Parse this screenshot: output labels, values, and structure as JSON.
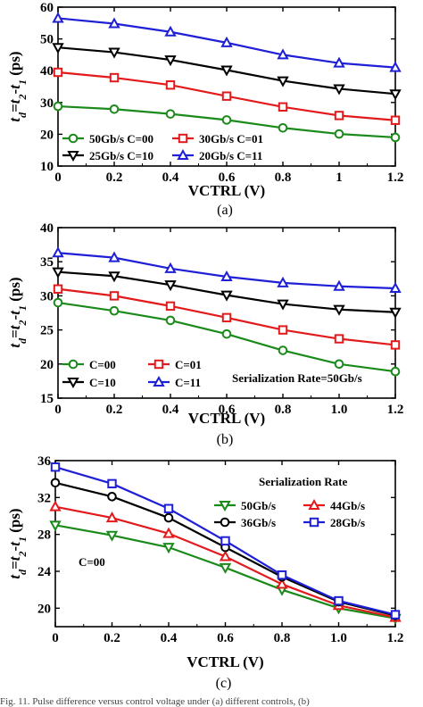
{
  "caption_fragment": "Fig. 11.  Pulse difference versus control voltage under (a) different controls, (b)",
  "colors": {
    "green": "#1a8a1a",
    "red": "#e31a1c",
    "black": "#000000",
    "blue": "#1f1fd6"
  },
  "chart_data": [
    {
      "type": "line",
      "panel": "(a)",
      "xlabel": "VCTRL (V)",
      "ylabel": "td=t2-t1 (ps)",
      "xlim": [
        0,
        1.2
      ],
      "ylim": [
        10,
        60
      ],
      "xticks": [
        "0",
        "0.2",
        "0.4",
        "0.6",
        "0.8",
        "1",
        "1.2"
      ],
      "yticks": [
        "10",
        "20",
        "30",
        "40",
        "50",
        "60"
      ],
      "legend_placement": "bottom-left",
      "x": [
        0,
        0.2,
        0.4,
        0.6,
        0.8,
        1.0,
        1.2
      ],
      "series": [
        {
          "name": "50Gb/s C=00",
          "color": "green",
          "marker": "circle",
          "values": [
            28.8,
            27.9,
            26.4,
            24.5,
            22.0,
            20.1,
            19.0
          ]
        },
        {
          "name": "30Gb/s C=01",
          "color": "red",
          "marker": "square",
          "values": [
            39.5,
            37.8,
            35.5,
            32.0,
            28.6,
            25.9,
            24.4
          ]
        },
        {
          "name": "25Gb/s C=10",
          "color": "black",
          "marker": "triangle-down",
          "values": [
            47.3,
            45.8,
            43.4,
            40.2,
            36.8,
            34.3,
            32.7
          ]
        },
        {
          "name": "20Gb/s C=11",
          "color": "blue",
          "marker": "triangle-up",
          "values": [
            56.5,
            54.8,
            52.2,
            48.8,
            45.0,
            42.4,
            41.0
          ]
        }
      ]
    },
    {
      "type": "line",
      "panel": "(b)",
      "xlabel": "VCTRL (V)",
      "ylabel": "td=t2-t1 (ps)",
      "xlim": [
        0,
        1.2
      ],
      "ylim": [
        15,
        40
      ],
      "xticks": [
        "0",
        "0.2",
        "0.4",
        "0.6",
        "0.8",
        "1.0",
        "1.2"
      ],
      "yticks": [
        "15",
        "20",
        "25",
        "30",
        "35",
        "40"
      ],
      "legend_placement": "bottom-left",
      "annotation": "Serialization Rate=50Gb/s",
      "x": [
        0,
        0.2,
        0.4,
        0.6,
        0.8,
        1.0,
        1.2
      ],
      "series": [
        {
          "name": "C=00",
          "color": "green",
          "marker": "circle",
          "values": [
            29.0,
            27.8,
            26.4,
            24.4,
            22.0,
            20.0,
            18.9
          ]
        },
        {
          "name": "C=01",
          "color": "red",
          "marker": "square",
          "values": [
            31.0,
            30.0,
            28.5,
            26.8,
            25.0,
            23.7,
            22.8
          ]
        },
        {
          "name": "C=10",
          "color": "black",
          "marker": "triangle-down",
          "values": [
            33.5,
            32.9,
            31.6,
            30.1,
            28.8,
            28.0,
            27.6
          ]
        },
        {
          "name": "C=11",
          "color": "blue",
          "marker": "triangle-up",
          "values": [
            36.3,
            35.6,
            34.0,
            32.8,
            31.9,
            31.4,
            31.1
          ]
        }
      ]
    },
    {
      "type": "line",
      "panel": "(c)",
      "xlabel": "VCTRL (V)",
      "ylabel": "td=t2-t1 (ps)",
      "xlim": [
        0,
        1.2
      ],
      "ylim": [
        18,
        36
      ],
      "xticks": [
        "0",
        "0.2",
        "0.4",
        "0.6",
        "0.8",
        "1.0",
        "1.2"
      ],
      "yticks": [
        "20",
        "24",
        "28",
        "32",
        "36"
      ],
      "legend_placement": "top-right",
      "legend_title": "Serialization Rate",
      "annotation": "C=00",
      "x": [
        0,
        0.2,
        0.4,
        0.6,
        0.8,
        1.0,
        1.2
      ],
      "series": [
        {
          "name": "50Gb/s",
          "color": "green",
          "marker": "triangle-down",
          "values": [
            29.0,
            27.9,
            26.6,
            24.4,
            22.0,
            20.0,
            18.9
          ]
        },
        {
          "name": "44Gb/s",
          "color": "red",
          "marker": "triangle-up",
          "values": [
            31.0,
            29.8,
            28.1,
            25.6,
            22.6,
            20.3,
            19.0
          ]
        },
        {
          "name": "36Gb/s",
          "color": "black",
          "marker": "circle",
          "values": [
            33.6,
            32.1,
            29.8,
            26.6,
            23.4,
            20.7,
            19.2
          ]
        },
        {
          "name": "28Gb/s",
          "color": "blue",
          "marker": "square",
          "values": [
            35.3,
            33.5,
            30.8,
            27.3,
            23.6,
            20.8,
            19.3
          ]
        }
      ]
    }
  ]
}
